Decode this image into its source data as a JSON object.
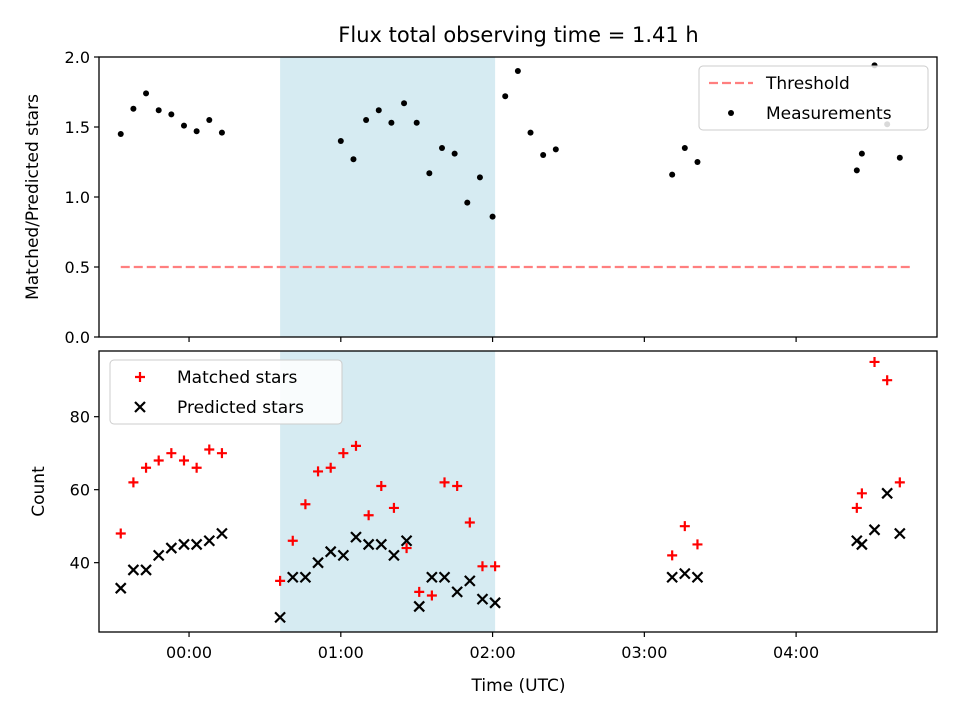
{
  "title": "Flux total observing time = 1.41 h",
  "x_axis": {
    "label": "Time (UTC)",
    "ticks": [
      {
        "t": 0,
        "label": "00:00"
      },
      {
        "t": 60,
        "label": "01:00"
      },
      {
        "t": 120,
        "label": "02:00"
      },
      {
        "t": 180,
        "label": "03:00"
      },
      {
        "t": 240,
        "label": "04:00"
      }
    ]
  },
  "shaded_interval": {
    "from": "00:36",
    "to": "02:01",
    "color": "#add8e6"
  },
  "chart_data": [
    {
      "type": "scatter",
      "panel": "top",
      "ylabel": "Matched/Predicted stars",
      "ylim": [
        0,
        2.0
      ],
      "yticks": [
        "0.0",
        "0.5",
        "1.0",
        "1.5",
        "2.0"
      ],
      "legend_position": "top-right",
      "threshold": {
        "name": "Threshold",
        "value": 0.5,
        "from": "23:33",
        "to": "04:46",
        "color": "#ff7f7f"
      },
      "series": [
        {
          "name": "Measurements",
          "color": "#000000",
          "points": [
            [
              "23:33",
              1.45
            ],
            [
              "23:38",
              1.63
            ],
            [
              "23:43",
              1.74
            ],
            [
              "23:48",
              1.62
            ],
            [
              "23:53",
              1.59
            ],
            [
              "23:58",
              1.51
            ],
            [
              "00:03",
              1.47
            ],
            [
              "00:08",
              1.55
            ],
            [
              "00:13",
              1.46
            ],
            [
              "00:60",
              1.4
            ],
            [
              "01:05",
              1.27
            ],
            [
              "01:10",
              1.55
            ],
            [
              "01:15",
              1.62
            ],
            [
              "01:20",
              1.53
            ],
            [
              "01:25",
              1.67
            ],
            [
              "01:30",
              1.53
            ],
            [
              "01:35",
              1.17
            ],
            [
              "01:40",
              1.35
            ],
            [
              "01:45",
              1.31
            ],
            [
              "01:50",
              0.96
            ],
            [
              "01:55",
              1.14
            ],
            [
              "02:00",
              0.86
            ],
            [
              "02:05",
              1.72
            ],
            [
              "02:10",
              1.9
            ],
            [
              "02:15",
              1.46
            ],
            [
              "02:20",
              1.3
            ],
            [
              "02:25",
              1.34
            ],
            [
              "03:11",
              1.16
            ],
            [
              "03:16",
              1.35
            ],
            [
              "03:21",
              1.25
            ],
            [
              "04:24",
              1.19
            ],
            [
              "04:26",
              1.31
            ],
            [
              "04:31",
              1.94
            ],
            [
              "04:36",
              1.52
            ],
            [
              "04:41",
              1.28
            ]
          ]
        }
      ]
    },
    {
      "type": "scatter",
      "panel": "bottom",
      "ylabel": "Count",
      "ylim": [
        21,
        98
      ],
      "yticks": [
        "40",
        "60",
        "80"
      ],
      "legend_position": "top-left",
      "series": [
        {
          "name": "Matched stars",
          "marker": "plus",
          "color": "#ff0000",
          "points": [
            [
              "23:33",
              48
            ],
            [
              "23:38",
              62
            ],
            [
              "23:43",
              66
            ],
            [
              "23:48",
              68
            ],
            [
              "23:53",
              70
            ],
            [
              "23:58",
              68
            ],
            [
              "00:03",
              66
            ],
            [
              "00:08",
              71
            ],
            [
              "00:13",
              70
            ],
            [
              "00:36",
              35
            ],
            [
              "00:41",
              46
            ],
            [
              "00:46",
              56
            ],
            [
              "00:51",
              65
            ],
            [
              "00:56",
              66
            ],
            [
              "01:01",
              70
            ],
            [
              "01:06",
              72
            ],
            [
              "01:11",
              53
            ],
            [
              "01:16",
              61
            ],
            [
              "01:21",
              55
            ],
            [
              "01:26",
              44
            ],
            [
              "01:31",
              32
            ],
            [
              "01:36",
              31
            ],
            [
              "01:41",
              62
            ],
            [
              "01:46",
              61
            ],
            [
              "01:51",
              51
            ],
            [
              "01:56",
              39
            ],
            [
              "02:01",
              39
            ],
            [
              "03:11",
              42
            ],
            [
              "03:16",
              50
            ],
            [
              "03:21",
              45
            ],
            [
              "04:24",
              55
            ],
            [
              "04:26",
              59
            ],
            [
              "04:31",
              95
            ],
            [
              "04:36",
              90
            ],
            [
              "04:41",
              62
            ]
          ]
        },
        {
          "name": "Predicted stars",
          "marker": "x",
          "color": "#000000",
          "points": [
            [
              "23:33",
              33
            ],
            [
              "23:38",
              38
            ],
            [
              "23:43",
              38
            ],
            [
              "23:48",
              42
            ],
            [
              "23:53",
              44
            ],
            [
              "23:58",
              45
            ],
            [
              "00:03",
              45
            ],
            [
              "00:08",
              46
            ],
            [
              "00:13",
              48
            ],
            [
              "00:36",
              25
            ],
            [
              "00:41",
              36
            ],
            [
              "00:46",
              36
            ],
            [
              "00:51",
              40
            ],
            [
              "00:56",
              43
            ],
            [
              "01:01",
              42
            ],
            [
              "01:06",
              47
            ],
            [
              "01:11",
              45
            ],
            [
              "01:16",
              45
            ],
            [
              "01:21",
              42
            ],
            [
              "01:26",
              46
            ],
            [
              "01:31",
              28
            ],
            [
              "01:36",
              36
            ],
            [
              "01:41",
              36
            ],
            [
              "01:46",
              32
            ],
            [
              "01:51",
              35
            ],
            [
              "01:56",
              30
            ],
            [
              "02:01",
              29
            ],
            [
              "03:11",
              36
            ],
            [
              "03:16",
              37
            ],
            [
              "03:21",
              36
            ],
            [
              "04:24",
              46
            ],
            [
              "04:26",
              45
            ],
            [
              "04:31",
              49
            ],
            [
              "04:36",
              59
            ],
            [
              "04:41",
              48
            ]
          ]
        }
      ]
    }
  ]
}
